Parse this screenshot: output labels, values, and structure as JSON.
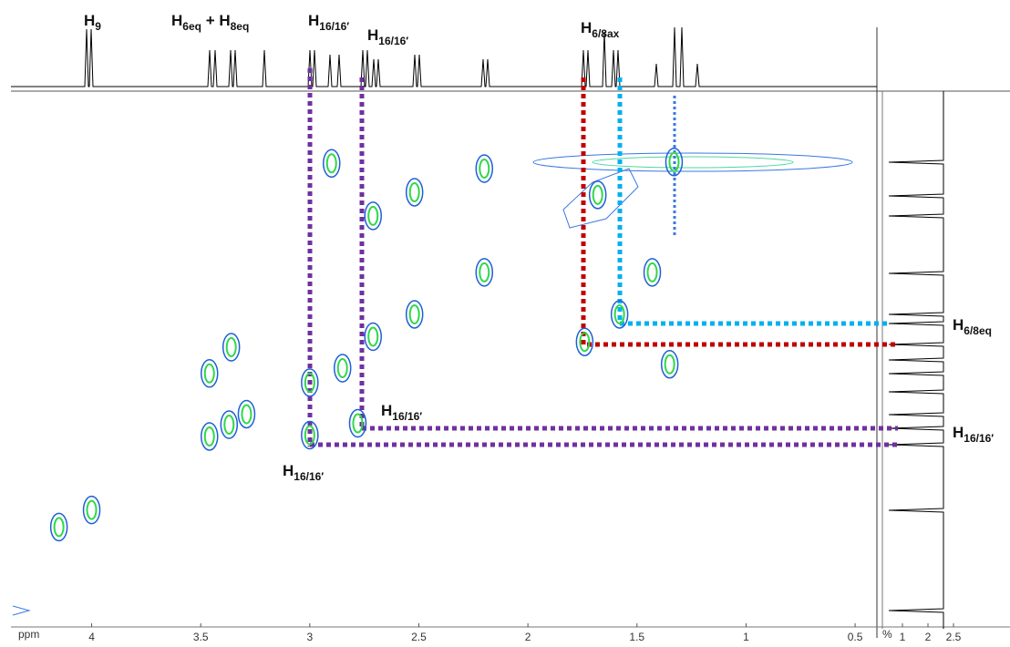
{
  "chart_data": {
    "type": "cosy",
    "x_label": "ppm",
    "xlim": [
      4.37,
      0.4
    ],
    "ylim": [
      4.87,
      0.81
    ],
    "xticks": [
      4,
      3.5,
      3,
      2.5,
      2,
      1.5,
      1,
      0.5
    ],
    "intensity_axis": {
      "label": "%",
      "ticks": [
        1,
        2,
        2.5
      ]
    },
    "colors": {
      "outer": "#1f5fd6",
      "inner": "#2fd84a"
    },
    "peaks": {
      "x": [
        4.0,
        4.15,
        3.46,
        3.37,
        3.29,
        3.46,
        3.36,
        3.0,
        2.85,
        2.71,
        3.0,
        2.78,
        2.9,
        2.71,
        2.52,
        2.52,
        2.2,
        2.2,
        1.74,
        1.58,
        1.68,
        1.33,
        1.43,
        1.35
      ],
      "y": [
        4.0,
        4.13,
        3.44,
        3.35,
        3.27,
        2.96,
        2.76,
        3.03,
        2.92,
        2.68,
        3.43,
        3.34,
        1.36,
        1.76,
        1.58,
        2.51,
        2.19,
        1.4,
        2.72,
        2.51,
        1.6,
        1.35,
        2.19,
        2.89
      ]
    },
    "annotations": [
      {
        "parts": [
          "H",
          "9"
        ]
      },
      {
        "parts": [
          "H",
          "6eq",
          " + H",
          "8eq"
        ]
      },
      {
        "parts": [
          "H",
          "16/16′"
        ]
      },
      {
        "parts": [
          "H",
          "16/16′"
        ]
      },
      {
        "parts": [
          "H",
          "6/8ax"
        ]
      },
      {
        "parts": [
          "H",
          "6/8eq"
        ]
      },
      {
        "parts": [
          "H",
          "16/16′"
        ]
      },
      {
        "parts": [
          "H",
          "16/16′"
        ]
      },
      {
        "parts": [
          "H",
          "16/16′"
        ]
      }
    ]
  }
}
